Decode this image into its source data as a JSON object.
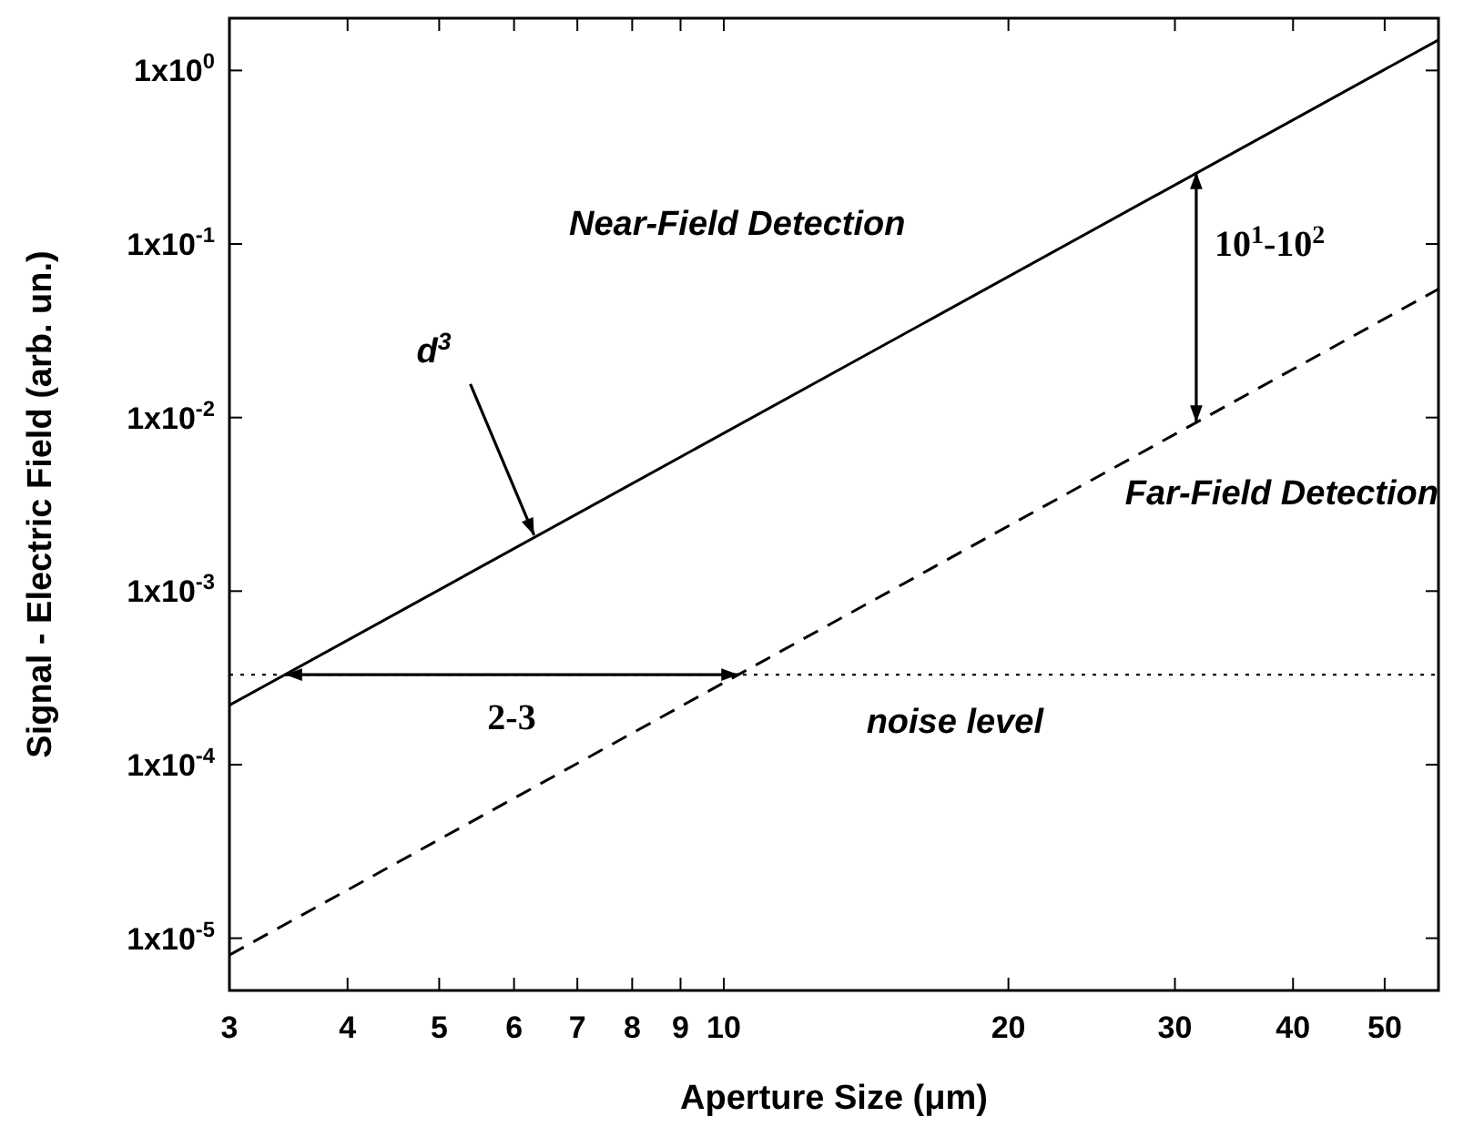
{
  "chart_data": {
    "type": "line",
    "xlabel": "Aperture Size (μm)",
    "ylabel": "Signal - Electric Field (arb. un.)",
    "x": [
      3,
      57
    ],
    "series": [
      {
        "name": "Near-Field Detection",
        "color": "#000000",
        "line_style": "solid",
        "values": [
          0.00022,
          1.5
        ]
      },
      {
        "name": "Far-Field Detection",
        "color": "#000000",
        "line_style": "dashed",
        "values": [
          8e-06,
          0.055
        ]
      }
    ],
    "log": "xy",
    "xlim": [
      3,
      57
    ],
    "ylim": [
      5e-06,
      2
    ],
    "xticks": [
      3,
      4,
      5,
      6,
      7,
      8,
      9,
      10,
      20,
      30,
      40,
      50
    ],
    "yticks": [
      {
        "value": 1e-05,
        "label": "1x10$^{-5}$"
      },
      {
        "value": 0.0001,
        "label": "1x10$^{-4}$"
      },
      {
        "value": 0.001,
        "label": "1x10$^{-3}$"
      },
      {
        "value": 0.01,
        "label": "1x10$^{-2}$"
      },
      {
        "value": 0.1,
        "label": "1x10$^{-1}$"
      },
      {
        "value": 1,
        "label": "1x10$^{0}$"
      }
    ],
    "ref_lines": [
      {
        "axis": "y",
        "value": 0.00033,
        "label": "noise level",
        "line_style": "dotted",
        "color": "#000000"
      }
    ],
    "annotations": [
      {
        "text": "d$^{3}$",
        "x": 6.3,
        "y": 0.0021
      },
      "2-3",
      {
        "text": "10$^{1}$-10$^{2}$",
        "x": 31.6,
        "y": 0.26
      }
    ],
    "grid": false
  }
}
